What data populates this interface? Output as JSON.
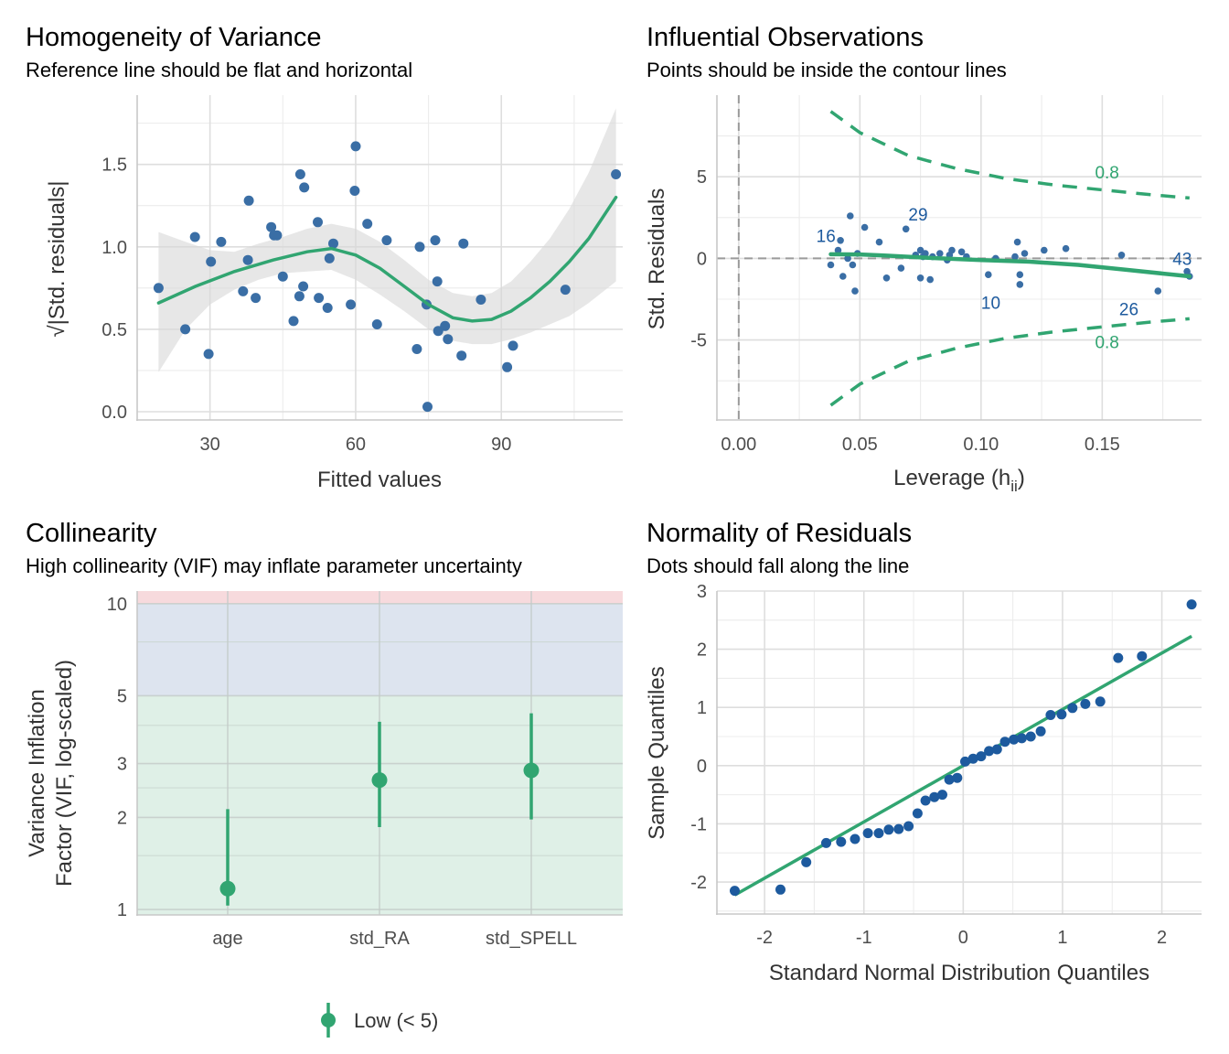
{
  "colors": {
    "point": "#3a6ea5",
    "qq_point": "#1d5a9e",
    "line": "#31a571",
    "band": "#d9d9d9",
    "label_blue": "#1d5a9e",
    "contour": "#31a571",
    "zone_low": "#dff0e7",
    "zone_moderate": "#dde4ef",
    "zone_high": "#f7dadd"
  },
  "chart_data": [
    {
      "id": "homogeneity",
      "type": "scatter",
      "title": "Homogeneity of Variance",
      "subtitle": "Reference line should be flat and horizontal",
      "xlabel": "Fitted values",
      "ylabel": "√|Std. residuals|",
      "xlim": [
        15,
        115
      ],
      "ylim": [
        -0.05,
        1.92
      ],
      "xticks": [
        30,
        60,
        90
      ],
      "xtick_labels": [
        "30",
        "60",
        "90"
      ],
      "yticks": [
        0.0,
        0.5,
        1.0,
        1.5
      ],
      "ytick_labels": [
        "0.0",
        "0.5",
        "1.0",
        "1.5"
      ],
      "points": [
        [
          19.4,
          0.75
        ],
        [
          24.9,
          0.5
        ],
        [
          26.9,
          1.06
        ],
        [
          29.7,
          0.35
        ],
        [
          30.2,
          0.91
        ],
        [
          32.3,
          1.03
        ],
        [
          36.8,
          0.73
        ],
        [
          37.8,
          0.92
        ],
        [
          38.0,
          1.28
        ],
        [
          39.4,
          0.69
        ],
        [
          42.6,
          1.12
        ],
        [
          43.2,
          1.07
        ],
        [
          43.8,
          1.07
        ],
        [
          45.0,
          0.82
        ],
        [
          47.2,
          0.55
        ],
        [
          48.4,
          0.7
        ],
        [
          48.6,
          1.44
        ],
        [
          49.2,
          0.76
        ],
        [
          49.4,
          1.36
        ],
        [
          52.2,
          1.15
        ],
        [
          52.4,
          0.69
        ],
        [
          54.2,
          0.63
        ],
        [
          54.6,
          0.93
        ],
        [
          55.4,
          1.02
        ],
        [
          59.0,
          0.65
        ],
        [
          59.8,
          1.34
        ],
        [
          60.0,
          1.61
        ],
        [
          62.4,
          1.14
        ],
        [
          64.4,
          0.53
        ],
        [
          66.4,
          1.04
        ],
        [
          72.6,
          0.38
        ],
        [
          73.2,
          1.0
        ],
        [
          74.6,
          0.65
        ],
        [
          74.8,
          0.03
        ],
        [
          76.4,
          1.04
        ],
        [
          76.8,
          0.79
        ],
        [
          77.0,
          0.49
        ],
        [
          78.4,
          0.52
        ],
        [
          79.0,
          0.44
        ],
        [
          81.8,
          0.34
        ],
        [
          82.2,
          1.02
        ],
        [
          85.8,
          0.68
        ],
        [
          91.2,
          0.27
        ],
        [
          92.4,
          0.4
        ],
        [
          103.2,
          0.74
        ],
        [
          113.6,
          1.44
        ]
      ],
      "smooth": [
        [
          19.4,
          0.66
        ],
        [
          27,
          0.76
        ],
        [
          35,
          0.85
        ],
        [
          43,
          0.92
        ],
        [
          50,
          0.97
        ],
        [
          55,
          0.99
        ],
        [
          60,
          0.95
        ],
        [
          65,
          0.87
        ],
        [
          70,
          0.76
        ],
        [
          75,
          0.65
        ],
        [
          80,
          0.57
        ],
        [
          84,
          0.55
        ],
        [
          88,
          0.56
        ],
        [
          92,
          0.61
        ],
        [
          96,
          0.69
        ],
        [
          100,
          0.79
        ],
        [
          104,
          0.91
        ],
        [
          108,
          1.05
        ],
        [
          113.6,
          1.3
        ]
      ],
      "band_upper": [
        [
          19.4,
          1.09
        ],
        [
          25,
          1.03
        ],
        [
          30,
          0.98
        ],
        [
          35,
          0.97
        ],
        [
          40,
          1.02
        ],
        [
          45,
          1.06
        ],
        [
          50,
          1.11
        ],
        [
          55,
          1.14
        ],
        [
          60,
          1.11
        ],
        [
          65,
          1.03
        ],
        [
          70,
          0.92
        ],
        [
          75,
          0.8
        ],
        [
          80,
          0.72
        ],
        [
          84,
          0.7
        ],
        [
          88,
          0.72
        ],
        [
          92,
          0.79
        ],
        [
          96,
          0.91
        ],
        [
          100,
          1.05
        ],
        [
          104,
          1.23
        ],
        [
          108,
          1.45
        ],
        [
          113.6,
          1.84
        ]
      ],
      "band_lower": [
        [
          19.4,
          0.24
        ],
        [
          25,
          0.5
        ],
        [
          30,
          0.65
        ],
        [
          35,
          0.74
        ],
        [
          40,
          0.8
        ],
        [
          45,
          0.84
        ],
        [
          50,
          0.85
        ],
        [
          55,
          0.86
        ],
        [
          60,
          0.8
        ],
        [
          65,
          0.71
        ],
        [
          70,
          0.61
        ],
        [
          75,
          0.5
        ],
        [
          80,
          0.43
        ],
        [
          84,
          0.41
        ],
        [
          88,
          0.41
        ],
        [
          92,
          0.44
        ],
        [
          96,
          0.48
        ],
        [
          100,
          0.53
        ],
        [
          104,
          0.58
        ],
        [
          108,
          0.66
        ],
        [
          113.6,
          0.79
        ]
      ]
    },
    {
      "id": "influential",
      "type": "scatter",
      "title": "Influential Observations",
      "subtitle": "Points should be inside the contour lines",
      "xlabel": "Leverage (h",
      "xlabel_sub": "ii",
      "xlabel_close": ")",
      "ylabel": "Std. Residuals",
      "xlim": [
        -0.009,
        0.191
      ],
      "ylim": [
        -9.9,
        10.0
      ],
      "xticks": [
        0.0,
        0.05,
        0.1,
        0.15
      ],
      "xtick_labels": [
        "0.00",
        "0.05",
        "0.10",
        "0.15"
      ],
      "yticks": [
        -5,
        0,
        5
      ],
      "ytick_labels": [
        "-5",
        "0",
        "5"
      ],
      "points": [
        [
          0.038,
          -0.4
        ],
        [
          0.041,
          0.5
        ],
        [
          0.042,
          1.1
        ],
        [
          0.043,
          -1.1
        ],
        [
          0.045,
          0.0
        ],
        [
          0.046,
          2.6
        ],
        [
          0.047,
          -0.4
        ],
        [
          0.048,
          -2.0
        ],
        [
          0.049,
          0.3
        ],
        [
          0.052,
          1.9
        ],
        [
          0.058,
          1.0
        ],
        [
          0.061,
          -1.2
        ],
        [
          0.067,
          -0.6
        ],
        [
          0.069,
          1.8
        ],
        [
          0.073,
          0.2
        ],
        [
          0.075,
          0.5
        ],
        [
          0.075,
          -1.2
        ],
        [
          0.076,
          0.1
        ],
        [
          0.077,
          0.3
        ],
        [
          0.079,
          -1.3
        ],
        [
          0.08,
          0.1
        ],
        [
          0.083,
          0.3
        ],
        [
          0.086,
          -0.1
        ],
        [
          0.087,
          0.2
        ],
        [
          0.088,
          0.5
        ],
        [
          0.092,
          0.4
        ],
        [
          0.094,
          0.1
        ],
        [
          0.103,
          -1.0
        ],
        [
          0.106,
          0.0
        ],
        [
          0.114,
          0.1
        ],
        [
          0.115,
          1.0
        ],
        [
          0.116,
          -1.0
        ],
        [
          0.116,
          -1.6
        ],
        [
          0.118,
          0.3
        ],
        [
          0.126,
          0.5
        ],
        [
          0.135,
          0.6
        ],
        [
          0.158,
          0.2
        ],
        [
          0.173,
          -2.0
        ],
        [
          0.185,
          -0.8
        ],
        [
          0.186,
          -1.1
        ]
      ],
      "labels": [
        {
          "text": "16",
          "x": 0.036,
          "y": 1.4
        },
        {
          "text": "29",
          "x": 0.074,
          "y": 2.7
        },
        {
          "text": "10",
          "x": 0.104,
          "y": -2.7
        },
        {
          "text": "26",
          "x": 0.161,
          "y": -3.1
        },
        {
          "text": "43",
          "x": 0.183,
          "y": 0.0
        }
      ],
      "smooth": [
        [
          0.038,
          0.25
        ],
        [
          0.05,
          0.24
        ],
        [
          0.06,
          0.18
        ],
        [
          0.08,
          0.02
        ],
        [
          0.1,
          -0.1
        ],
        [
          0.12,
          -0.2
        ],
        [
          0.14,
          -0.4
        ],
        [
          0.16,
          -0.7
        ],
        [
          0.186,
          -1.1
        ]
      ],
      "contour_upper": [
        [
          0.038,
          9.0
        ],
        [
          0.05,
          7.7
        ],
        [
          0.07,
          6.3
        ],
        [
          0.09,
          5.5
        ],
        [
          0.11,
          4.9
        ],
        [
          0.13,
          4.5
        ],
        [
          0.15,
          4.2
        ],
        [
          0.17,
          3.9
        ],
        [
          0.186,
          3.7
        ]
      ],
      "contour_lower": [
        [
          0.038,
          -9.0
        ],
        [
          0.05,
          -7.7
        ],
        [
          0.07,
          -6.3
        ],
        [
          0.09,
          -5.5
        ],
        [
          0.11,
          -4.9
        ],
        [
          0.13,
          -4.5
        ],
        [
          0.15,
          -4.2
        ],
        [
          0.17,
          -3.9
        ],
        [
          0.186,
          -3.7
        ]
      ],
      "contour_labels": [
        {
          "text": "0.8",
          "x": 0.152,
          "y": 5.3
        },
        {
          "text": "0.8",
          "x": 0.152,
          "y": -5.1
        }
      ]
    },
    {
      "id": "collinearity",
      "type": "scatter",
      "title": "Collinearity",
      "subtitle": "High collinearity (VIF) may inflate parameter uncertainty",
      "xlabel": "",
      "ylabel_line1": "Variance Inflation",
      "ylabel_line2": "Factor (VIF, log-scaled)",
      "y_scale": "log",
      "ylim": [
        0.96,
        11.0
      ],
      "categories": [
        "age",
        "std_RA",
        "std_SPELL"
      ],
      "yticks": [
        1,
        2,
        3,
        5,
        10
      ],
      "ytick_labels": [
        "1",
        "2",
        "3",
        "5",
        "10"
      ],
      "zones": [
        {
          "name": "low",
          "from": 0.96,
          "to": 5
        },
        {
          "name": "moderate",
          "from": 5,
          "to": 10
        },
        {
          "name": "high",
          "from": 10,
          "to": 11.0
        }
      ],
      "vif": [
        1.17,
        2.65,
        2.85
      ],
      "ci_low": [
        1.03,
        1.86,
        1.97
      ],
      "ci_high": [
        2.13,
        4.11,
        4.38
      ],
      "legend": {
        "label": "Low (< 5)",
        "position": "bottom"
      }
    },
    {
      "id": "normality",
      "type": "scatter",
      "title": "Normality of Residuals",
      "subtitle": "Dots should fall along the line",
      "xlabel": "Standard Normal Distribution Quantiles",
      "ylabel": "Sample Quantiles",
      "xlim": [
        -2.48,
        2.4
      ],
      "ylim": [
        -2.55,
        3.0
      ],
      "xticks": [
        -2,
        -1,
        0,
        1,
        2
      ],
      "xtick_labels": [
        "-2",
        "-1",
        "0",
        "1",
        "2"
      ],
      "yticks": [
        -2,
        -1,
        0,
        1,
        2,
        3
      ],
      "ytick_labels": [
        "-2",
        "-1",
        "0",
        "1",
        "2",
        "3"
      ],
      "theoretical": [
        -2.3,
        -1.84,
        -1.58,
        -1.38,
        -1.23,
        -1.09,
        -0.96,
        -0.85,
        -0.75,
        -0.65,
        -0.55,
        -0.46,
        -0.38,
        -0.29,
        -0.21,
        -0.14,
        -0.06,
        0.02,
        0.1,
        0.18,
        0.26,
        0.34,
        0.42,
        0.51,
        0.59,
        0.68,
        0.78,
        0.88,
        0.99,
        1.1,
        1.23,
        1.38,
        1.56,
        1.8,
        2.3
      ],
      "sample": [
        -2.15,
        -2.13,
        -1.66,
        -1.33,
        -1.31,
        -1.26,
        -1.16,
        -1.16,
        -1.1,
        -1.09,
        -1.04,
        -0.82,
        -0.6,
        -0.54,
        -0.5,
        -0.24,
        -0.21,
        0.07,
        0.12,
        0.16,
        0.25,
        0.28,
        0.41,
        0.45,
        0.47,
        0.5,
        0.59,
        0.87,
        0.88,
        0.99,
        1.06,
        1.1,
        1.85,
        1.88,
        2.77
      ],
      "ref_line": {
        "intercept": 0.0,
        "slope": 0.967
      }
    }
  ]
}
